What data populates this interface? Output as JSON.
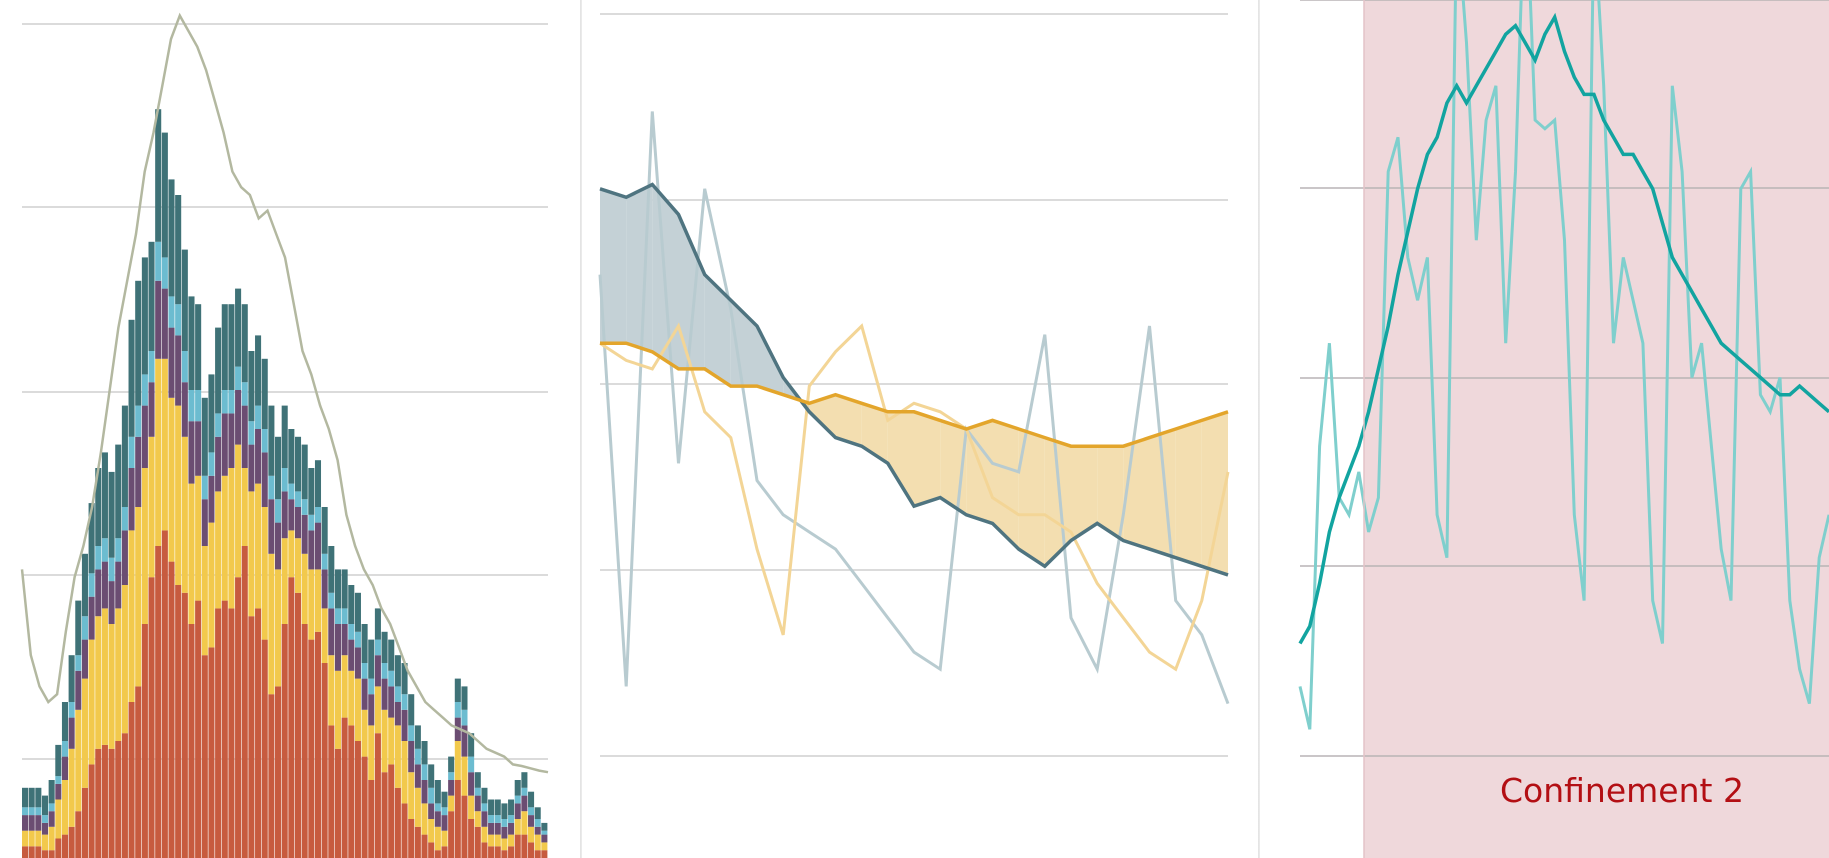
{
  "chart_data": [
    {
      "type": "bar",
      "stacked": true,
      "grid": true,
      "ylim": [
        0,
        1100
      ],
      "palette": [
        "#c75b3f",
        "#f2c94c",
        "#6b4d72",
        "#6cbcd0",
        "#3f7277"
      ],
      "overlay_color": "#b3b8a0",
      "stack_values": [
        [
          15,
          15,
          15,
          10,
          10,
          25,
          30,
          40,
          60,
          90,
          120,
          140,
          145,
          140,
          150,
          160,
          200,
          220,
          300,
          360,
          400,
          420,
          380,
          350,
          340,
          300,
          330,
          260,
          270,
          320,
          330,
          320,
          360,
          400,
          310,
          320,
          280,
          210,
          220,
          300,
          360,
          340,
          300,
          280,
          290,
          250,
          170,
          140,
          180,
          170,
          150,
          130,
          100,
          160,
          110,
          120,
          90,
          70,
          50,
          40,
          30,
          20,
          10,
          15,
          60,
          100,
          80,
          50,
          40,
          20,
          15,
          15,
          10,
          15,
          30,
          30,
          20,
          10,
          10
        ],
        [
          20,
          20,
          20,
          20,
          30,
          50,
          70,
          100,
          130,
          140,
          160,
          170,
          175,
          160,
          170,
          190,
          220,
          230,
          200,
          180,
          240,
          220,
          210,
          230,
          200,
          180,
          160,
          140,
          160,
          150,
          160,
          180,
          170,
          100,
          160,
          160,
          170,
          180,
          150,
          110,
          60,
          70,
          90,
          90,
          80,
          70,
          90,
          100,
          80,
          70,
          80,
          60,
          70,
          60,
          80,
          60,
          80,
          80,
          60,
          50,
          40,
          30,
          30,
          20,
          20,
          50,
          50,
          30,
          20,
          20,
          15,
          15,
          15,
          15,
          20,
          30,
          20,
          20,
          10
        ],
        [
          20,
          20,
          20,
          15,
          20,
          20,
          30,
          40,
          50,
          50,
          55,
          60,
          60,
          55,
          60,
          70,
          80,
          90,
          80,
          70,
          100,
          90,
          90,
          90,
          70,
          80,
          70,
          60,
          60,
          70,
          80,
          70,
          70,
          80,
          60,
          70,
          70,
          70,
          60,
          60,
          40,
          40,
          50,
          50,
          60,
          50,
          60,
          60,
          40,
          40,
          40,
          40,
          40,
          40,
          40,
          40,
          30,
          40,
          40,
          30,
          30,
          20,
          20,
          20,
          20,
          30,
          40,
          30,
          20,
          20,
          15,
          15,
          15,
          15,
          20,
          20,
          15,
          10,
          10
        ],
        [
          10,
          10,
          10,
          10,
          10,
          10,
          20,
          20,
          20,
          30,
          30,
          30,
          30,
          30,
          30,
          30,
          40,
          40,
          40,
          40,
          50,
          40,
          40,
          40,
          40,
          40,
          40,
          30,
          30,
          30,
          30,
          30,
          30,
          30,
          30,
          30,
          30,
          30,
          30,
          30,
          20,
          20,
          20,
          20,
          20,
          20,
          20,
          20,
          20,
          20,
          20,
          20,
          20,
          20,
          20,
          20,
          20,
          20,
          20,
          20,
          20,
          20,
          10,
          10,
          10,
          20,
          20,
          20,
          10,
          10,
          10,
          10,
          10,
          10,
          10,
          10,
          10,
          10,
          5
        ],
        [
          25,
          25,
          25,
          25,
          30,
          40,
          50,
          60,
          70,
          80,
          90,
          100,
          110,
          110,
          120,
          130,
          150,
          160,
          150,
          140,
          170,
          160,
          150,
          140,
          130,
          120,
          110,
          100,
          100,
          110,
          110,
          110,
          100,
          100,
          90,
          90,
          90,
          90,
          80,
          80,
          70,
          70,
          70,
          60,
          60,
          60,
          60,
          50,
          50,
          50,
          50,
          50,
          50,
          40,
          40,
          40,
          40,
          40,
          40,
          30,
          30,
          30,
          30,
          20,
          20,
          30,
          30,
          30,
          20,
          20,
          20,
          20,
          20,
          20,
          20,
          20,
          20,
          15,
          10
        ]
      ],
      "overlay_values": [
        370,
        260,
        220,
        200,
        210,
        290,
        360,
        400,
        450,
        520,
        600,
        680,
        740,
        800,
        880,
        930,
        990,
        1050,
        1080,
        1060,
        1040,
        1010,
        970,
        930,
        880,
        860,
        850,
        820,
        830,
        800,
        770,
        710,
        650,
        620,
        580,
        550,
        510,
        440,
        400,
        370,
        350,
        320,
        300,
        270,
        240,
        220,
        200,
        190,
        180,
        170,
        165,
        160,
        150,
        140,
        135,
        130,
        120,
        118,
        115,
        112,
        110
      ]
    },
    {
      "type": "line",
      "grid": true,
      "ylim": [
        0,
        100
      ],
      "x": [
        0,
        1,
        2,
        3,
        4,
        5,
        6,
        7,
        8,
        9,
        10,
        11,
        12,
        13,
        14,
        15,
        16,
        17,
        18,
        19,
        20,
        21,
        22,
        23,
        24
      ],
      "series": [
        {
          "color": "#4f7480",
          "values": [
            78,
            77,
            78.5,
            75,
            68,
            65,
            62,
            56,
            52,
            49,
            48,
            46,
            41,
            42,
            40,
            39,
            36,
            34,
            37,
            39,
            37,
            36,
            35,
            34,
            33
          ],
          "style": "smoothed"
        },
        {
          "color": "#e3a52b",
          "values": [
            60,
            60,
            59,
            57,
            57,
            55,
            55,
            54,
            53,
            54,
            53,
            52,
            52,
            51,
            50,
            51,
            50,
            49,
            48,
            48,
            48,
            49,
            50,
            51,
            52
          ],
          "style": "smoothed"
        },
        {
          "color": "#b8cbd0",
          "values": [
            68,
            20,
            87,
            46,
            78,
            64,
            44,
            40,
            38,
            36,
            32,
            28,
            24,
            22,
            50,
            46,
            45,
            61,
            28,
            22,
            40,
            62,
            30,
            26,
            18
          ],
          "style": "raw"
        },
        {
          "color": "#f3d596",
          "values": [
            60,
            58,
            57,
            62,
            52,
            49,
            36,
            26,
            55,
            59,
            62,
            51,
            53,
            52,
            50,
            42,
            40,
            40,
            38,
            32,
            28,
            24,
            22,
            30,
            45
          ],
          "style": "raw"
        }
      ]
    },
    {
      "type": "line",
      "grid": true,
      "ylim": [
        0,
        100
      ],
      "shaded_region": {
        "label": "Confinement 2",
        "fill": "#efd8db",
        "text_color": "#b30f14"
      },
      "series": [
        {
          "color": "#12a4a0",
          "style": "smoothed",
          "values": [
            25,
            27,
            32,
            38,
            42,
            45,
            48,
            52,
            57,
            62,
            68,
            73,
            78,
            82,
            84,
            88,
            90,
            88,
            90,
            92,
            94,
            96,
            97,
            95,
            93,
            96,
            98,
            94,
            91,
            89,
            89,
            86,
            84,
            82,
            82,
            80,
            78,
            74,
            70,
            68,
            66,
            64,
            62,
            60,
            59,
            58,
            57,
            56,
            55,
            54,
            54,
            55,
            54,
            53,
            52
          ]
        },
        {
          "color": "#7fcfcd",
          "style": "raw",
          "values": [
            20,
            15,
            48,
            60,
            42,
            40,
            45,
            38,
            42,
            80,
            84,
            70,
            65,
            70,
            40,
            35,
            110,
            95,
            72,
            86,
            90,
            60,
            80,
            115,
            86,
            85,
            86,
            72,
            40,
            30,
            110,
            90,
            60,
            70,
            65,
            60,
            30,
            25,
            90,
            80,
            56,
            60,
            48,
            36,
            30,
            78,
            80,
            54,
            52,
            56,
            30,
            22,
            18,
            35,
            40
          ]
        }
      ]
    }
  ]
}
